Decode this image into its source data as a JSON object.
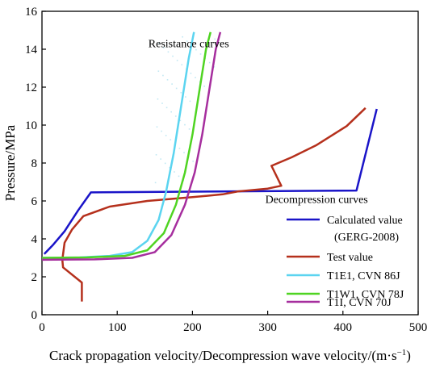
{
  "chart_data": {
    "type": "line",
    "xlabel": "Crack propagation velocity/Decompression wave velocity/(m·s",
    "xlabel_sup": "−1",
    "xlabel_end": ")",
    "ylabel": "Pressure/MPa",
    "xlim": [
      0,
      500
    ],
    "ylim": [
      0,
      16
    ],
    "xticks": [
      0,
      100,
      200,
      300,
      400,
      500
    ],
    "yticks": [
      0,
      2,
      4,
      6,
      8,
      10,
      12,
      14,
      16
    ],
    "grid": false,
    "legend_position": "bottom-right",
    "annotations": [
      {
        "text": "Resistance curves",
        "x": 195,
        "y": 14.1
      },
      {
        "text": "Decompression curves",
        "x": 365,
        "y": 5.9
      }
    ],
    "legend_continuation": "(GERG-2008)",
    "series": [
      {
        "name": "Calculated value",
        "color": "#1a14c8",
        "points": [
          [
            3,
            3.2
          ],
          [
            15,
            3.7
          ],
          [
            30,
            4.4
          ],
          [
            48,
            5.5
          ],
          [
            65,
            6.45
          ],
          [
            418,
            6.55
          ],
          [
            445,
            10.85
          ]
        ]
      },
      {
        "name": "Test value",
        "color": "#b5301c",
        "points": [
          [
            53,
            0.7
          ],
          [
            53,
            1.7
          ],
          [
            28,
            2.5
          ],
          [
            27,
            2.9
          ],
          [
            30,
            3.8
          ],
          [
            40,
            4.5
          ],
          [
            55,
            5.2
          ],
          [
            90,
            5.7
          ],
          [
            140,
            6.0
          ],
          [
            200,
            6.2
          ],
          [
            240,
            6.35
          ],
          [
            260,
            6.5
          ],
          [
            300,
            6.65
          ],
          [
            318,
            6.8
          ],
          [
            305,
            7.85
          ],
          [
            332,
            8.3
          ],
          [
            365,
            8.95
          ],
          [
            405,
            9.95
          ],
          [
            430,
            10.9
          ]
        ]
      },
      {
        "name": "T1E1, CVN 86J",
        "color": "#5bd4f0",
        "points": [
          [
            0,
            3.0
          ],
          [
            50,
            3.02
          ],
          [
            90,
            3.1
          ],
          [
            120,
            3.3
          ],
          [
            140,
            3.9
          ],
          [
            155,
            5.0
          ],
          [
            165,
            6.5
          ],
          [
            175,
            8.5
          ],
          [
            185,
            11.0
          ],
          [
            195,
            13.5
          ],
          [
            202,
            14.9
          ]
        ]
      },
      {
        "name": "T1W1, CVN 78J",
        "color": "#4fd422",
        "points": [
          [
            0,
            3.0
          ],
          [
            60,
            3.02
          ],
          [
            110,
            3.1
          ],
          [
            140,
            3.4
          ],
          [
            162,
            4.3
          ],
          [
            178,
            5.8
          ],
          [
            190,
            7.5
          ],
          [
            200,
            9.5
          ],
          [
            210,
            12.0
          ],
          [
            218,
            14.0
          ],
          [
            224,
            14.9
          ]
        ]
      },
      {
        "name": "T1I, CVN 70J",
        "color": "#a62e9e",
        "points": [
          [
            0,
            2.9
          ],
          [
            70,
            2.92
          ],
          [
            120,
            3.0
          ],
          [
            150,
            3.3
          ],
          [
            172,
            4.2
          ],
          [
            190,
            5.8
          ],
          [
            203,
            7.5
          ],
          [
            213,
            9.5
          ],
          [
            223,
            12.0
          ],
          [
            231,
            14.0
          ],
          [
            237,
            14.9
          ]
        ]
      }
    ]
  }
}
